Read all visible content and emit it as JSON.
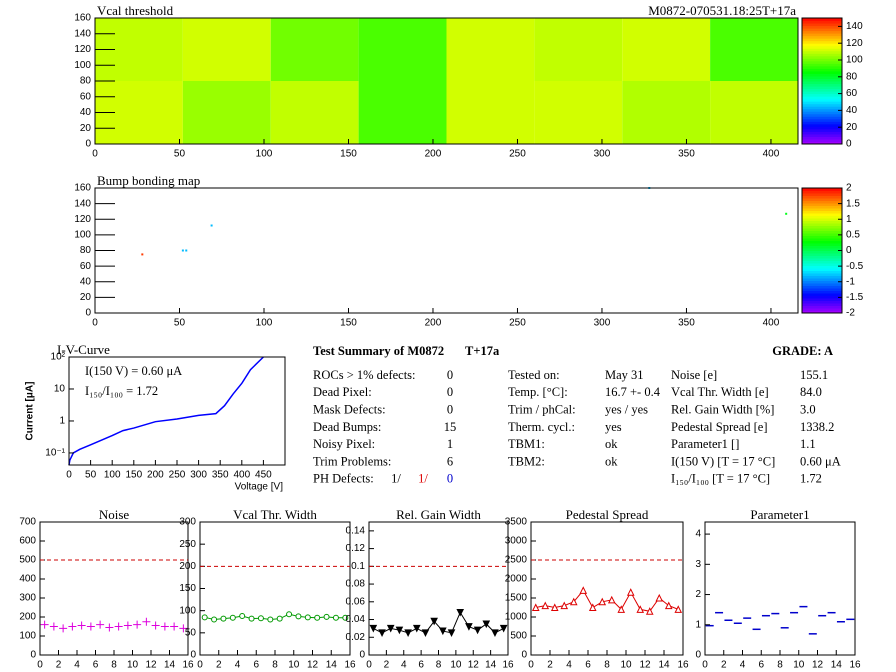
{
  "chart_data": [
    {
      "type": "heatmap",
      "title": "Vcal threshold",
      "annotation": "M0872-070531.18:25T+17a",
      "xbins": [
        0,
        52,
        104,
        156,
        208,
        260,
        312,
        364,
        416
      ],
      "ybins": [
        0,
        80,
        160
      ],
      "values": [
        [
          112,
          105,
          110,
          95,
          112,
          112,
          108,
          110
        ],
        [
          110,
          112,
          100,
          95,
          112,
          110,
          112,
          95
        ]
      ],
      "xlim": [
        0,
        416
      ],
      "ylim": [
        0,
        160
      ],
      "xticks": [
        0,
        50,
        100,
        150,
        200,
        250,
        300,
        350,
        400
      ],
      "yticks": [
        0,
        20,
        40,
        60,
        80,
        100,
        120,
        140,
        160
      ],
      "zlim": [
        0,
        150
      ],
      "zticks": [
        0,
        20,
        40,
        60,
        80,
        100,
        120,
        140
      ]
    },
    {
      "type": "scatter",
      "title": "Bump bonding map",
      "x": [
        28,
        52,
        54,
        69,
        328,
        409
      ],
      "y": [
        75,
        80,
        80,
        112,
        160,
        127
      ],
      "z": [
        1.8,
        -0.8,
        -0.8,
        -0.8,
        -0.8,
        0.2
      ],
      "xlim": [
        0,
        416
      ],
      "ylim": [
        0,
        160
      ],
      "xticks": [
        0,
        50,
        100,
        150,
        200,
        250,
        300,
        350,
        400
      ],
      "yticks": [
        0,
        20,
        40,
        60,
        80,
        100,
        120,
        140,
        160
      ],
      "zlim": [
        -2,
        2
      ],
      "zticks": [
        -2,
        -1.5,
        -1,
        -0.5,
        0,
        0.5,
        1,
        1.5,
        2
      ]
    },
    {
      "type": "line",
      "title": "I-V-Curve",
      "x_label": "Voltage [V]",
      "y_label": "Current [μA]",
      "annotations": [
        "I(150 V) = 0.60 μA",
        "I₁₅₀/I₁₀₀ =  1.72"
      ],
      "log_y": true,
      "color": "#0000ff",
      "connect": true,
      "x": [
        0,
        2,
        10,
        25,
        50,
        100,
        125,
        150,
        200,
        250,
        300,
        340,
        360,
        380,
        400,
        420,
        450
      ],
      "values": [
        0.042,
        0.06,
        0.1,
        0.13,
        0.18,
        0.35,
        0.5,
        0.6,
        0.95,
        1.15,
        1.5,
        1.7,
        3,
        7,
        15,
        40,
        100
      ],
      "xlim": [
        0,
        500
      ],
      "ylim": [
        0.042,
        100
      ],
      "xticks": [
        0,
        50,
        100,
        150,
        200,
        250,
        300,
        350,
        400,
        450
      ],
      "yticks": [
        {
          "value": 0.1,
          "label": "10⁻¹"
        },
        1,
        10,
        {
          "value": 100,
          "label": "10²"
        }
      ]
    },
    {
      "type": "line",
      "title": "Noise",
      "color": "#dd00dd",
      "marker": "plus",
      "connect": false,
      "limit": 500,
      "x": [
        0.5,
        1.5,
        2.5,
        3.5,
        4.5,
        5.5,
        6.5,
        7.5,
        8.5,
        9.5,
        10.5,
        11.5,
        12.5,
        13.5,
        14.5,
        15.5
      ],
      "values": [
        160,
        150,
        140,
        150,
        155,
        150,
        160,
        145,
        150,
        155,
        160,
        175,
        155,
        150,
        150,
        140
      ],
      "xlim": [
        0,
        16
      ],
      "ylim": [
        0,
        700
      ],
      "xticks": [
        0,
        2,
        4,
        6,
        8,
        10,
        12,
        14,
        16
      ],
      "yticks": [
        0,
        100,
        200,
        300,
        400,
        500,
        600,
        700
      ]
    },
    {
      "type": "line",
      "title": "Vcal Thr. Width",
      "color": "#009900",
      "marker": "circle",
      "connect": true,
      "limit": 200,
      "x": [
        0.5,
        1.5,
        2.5,
        3.5,
        4.5,
        5.5,
        6.5,
        7.5,
        8.5,
        9.5,
        10.5,
        11.5,
        12.5,
        13.5,
        14.5,
        15.5
      ],
      "values": [
        85,
        80,
        82,
        84,
        88,
        82,
        83,
        80,
        82,
        92,
        87,
        85,
        84,
        86,
        84,
        84
      ],
      "xlim": [
        0,
        16
      ],
      "ylim": [
        0,
        300
      ],
      "xticks": [
        0,
        2,
        4,
        6,
        8,
        10,
        12,
        14,
        16
      ],
      "yticks": [
        0,
        50,
        100,
        150,
        200,
        250,
        300
      ]
    },
    {
      "type": "line",
      "title": "Rel. Gain Width",
      "color": "#000000",
      "marker": "triangle-down",
      "connect": true,
      "limit": 0.1,
      "x": [
        0.5,
        1.5,
        2.5,
        3.5,
        4.5,
        5.5,
        6.5,
        7.5,
        8.5,
        9.5,
        10.5,
        11.5,
        12.5,
        13.5,
        14.5,
        15.5
      ],
      "values": [
        0.03,
        0.025,
        0.03,
        0.028,
        0.025,
        0.03,
        0.025,
        0.038,
        0.027,
        0.025,
        0.048,
        0.032,
        0.028,
        0.035,
        0.025,
        0.03
      ],
      "xlim": [
        0,
        16
      ],
      "ylim": [
        0,
        0.15
      ],
      "xticks": [
        0,
        2,
        4,
        6,
        8,
        10,
        12,
        14,
        16
      ],
      "yticks": [
        0,
        0.02,
        0.04,
        0.06,
        0.08,
        0.1,
        0.12,
        0.14
      ]
    },
    {
      "type": "line",
      "title": "Pedestal Spread",
      "color": "#dd0000",
      "marker": "triangle-up",
      "connect": true,
      "limit": 2500,
      "x": [
        0.5,
        1.5,
        2.5,
        3.5,
        4.5,
        5.5,
        6.5,
        7.5,
        8.5,
        9.5,
        10.5,
        11.5,
        12.5,
        13.5,
        14.5,
        15.5
      ],
      "values": [
        1250,
        1300,
        1250,
        1300,
        1400,
        1700,
        1250,
        1400,
        1450,
        1200,
        1650,
        1200,
        1150,
        1500,
        1300,
        1200
      ],
      "xlim": [
        0,
        16
      ],
      "ylim": [
        0,
        3500
      ],
      "xticks": [
        0,
        2,
        4,
        6,
        8,
        10,
        12,
        14,
        16
      ],
      "yticks": [
        0,
        500,
        1000,
        1500,
        2000,
        2500,
        3000,
        3500
      ]
    },
    {
      "type": "line",
      "title": "Parameter1",
      "color": "#0000cc",
      "marker": "dash",
      "connect": false,
      "x": [
        0.5,
        1.5,
        2.5,
        3.5,
        4.5,
        5.5,
        6.5,
        7.5,
        8.5,
        9.5,
        10.5,
        11.5,
        12.5,
        13.5,
        14.5,
        15.5
      ],
      "values": [
        0.97,
        1.4,
        1.15,
        1.05,
        1.22,
        0.85,
        1.3,
        1.37,
        0.9,
        1.4,
        1.6,
        0.7,
        1.3,
        1.4,
        1.1,
        1.18
      ],
      "xlim": [
        0,
        16
      ],
      "ylim": [
        0,
        4.4
      ],
      "xticks": [
        0,
        2,
        4,
        6,
        8,
        10,
        12,
        14,
        16
      ],
      "yticks": [
        0,
        1,
        2,
        3,
        4
      ]
    }
  ],
  "summary": {
    "title": "Test Summary of M0872",
    "tag": "T+17a",
    "grade": "GRADE:  A",
    "defects": [
      {
        "label": "ROCs > 1% defects:",
        "value": "0"
      },
      {
        "label": "Dead Pixel:",
        "value": "0"
      },
      {
        "label": "Mask Defects:",
        "value": "0"
      },
      {
        "label": "Dead Bumps:",
        "value": "15"
      },
      {
        "label": "Noisy Pixel:",
        "value": "1"
      },
      {
        "label": "Trim Problems:",
        "value": "6"
      }
    ],
    "ph_defects": {
      "label": "PH Defects:",
      "values": [
        "1/",
        "1/",
        "0"
      ],
      "colors": [
        "#000000",
        "#dd0000",
        "#0000cc"
      ]
    },
    "conditions": [
      {
        "label": "Tested on:",
        "value": "May 31"
      },
      {
        "label": "Temp. [°C]:",
        "value": "16.7 +- 0.4"
      },
      {
        "label": "Trim / phCal:",
        "value": "yes / yes"
      },
      {
        "label": "Therm. cycl.:",
        "value": "yes"
      },
      {
        "label": "TBM1:",
        "value": "ok"
      },
      {
        "label": "TBM2:",
        "value": "ok"
      }
    ],
    "results": [
      {
        "label": "Noise [e]",
        "value": "155.1"
      },
      {
        "label": "Vcal Thr. Width [e]",
        "value": "84.0"
      },
      {
        "label": "Rel. Gain Width [%]",
        "value": "3.0"
      },
      {
        "label": "Pedestal Spread [e]",
        "value": "1338.2"
      },
      {
        "label": "Parameter1 []",
        "value": "1.1"
      },
      {
        "label": "I(150 V) [T = 17 °C]",
        "value": "0.60 μA"
      },
      {
        "label": "I₁₅₀/I₁₀₀  [T = 17 °C]",
        "value": "1.72"
      }
    ]
  }
}
